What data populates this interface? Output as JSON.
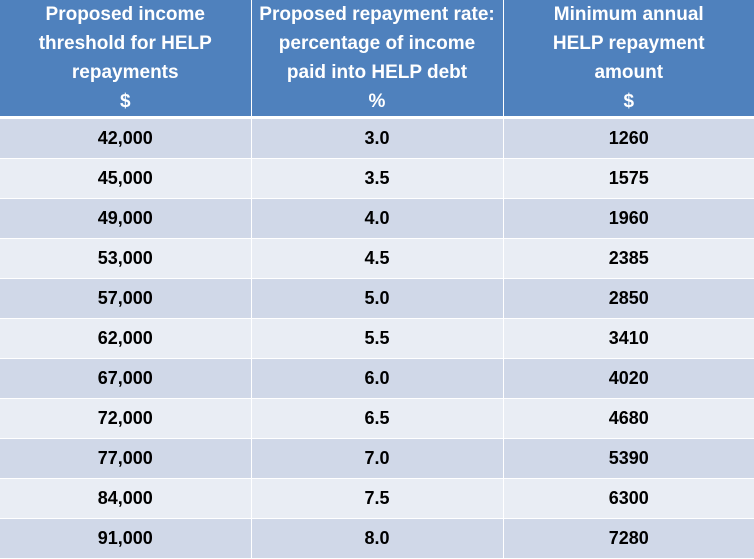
{
  "table": {
    "headers": [
      {
        "lines": [
          "Proposed income",
          "threshold for  HELP",
          "repayments",
          "$"
        ]
      },
      {
        "lines": [
          "Proposed repayment rate:",
          "percentage of income",
          "paid into HELP debt",
          "%"
        ]
      },
      {
        "lines": [
          "Minimum annual",
          "HELP repayment",
          "amount",
          "$"
        ]
      }
    ],
    "rows": [
      [
        "42,000",
        "3.0",
        "1260"
      ],
      [
        "45,000",
        "3.5",
        "1575"
      ],
      [
        "49,000",
        "4.0",
        "1960"
      ],
      [
        "53,000",
        "4.5",
        "2385"
      ],
      [
        "57,000",
        "5.0",
        "2850"
      ],
      [
        "62,000",
        "5.5",
        "3410"
      ],
      [
        "67,000",
        "6.0",
        "4020"
      ],
      [
        "72,000",
        "6.5",
        "4680"
      ],
      [
        "77,000",
        "7.0",
        "5390"
      ],
      [
        "84,000",
        "7.5",
        "6300"
      ],
      [
        "91,000",
        "8.0",
        "7280"
      ]
    ]
  },
  "colors": {
    "header_bg": "#4f81bd",
    "row_dark": "#d0d8e8",
    "row_light": "#e9edf4"
  }
}
